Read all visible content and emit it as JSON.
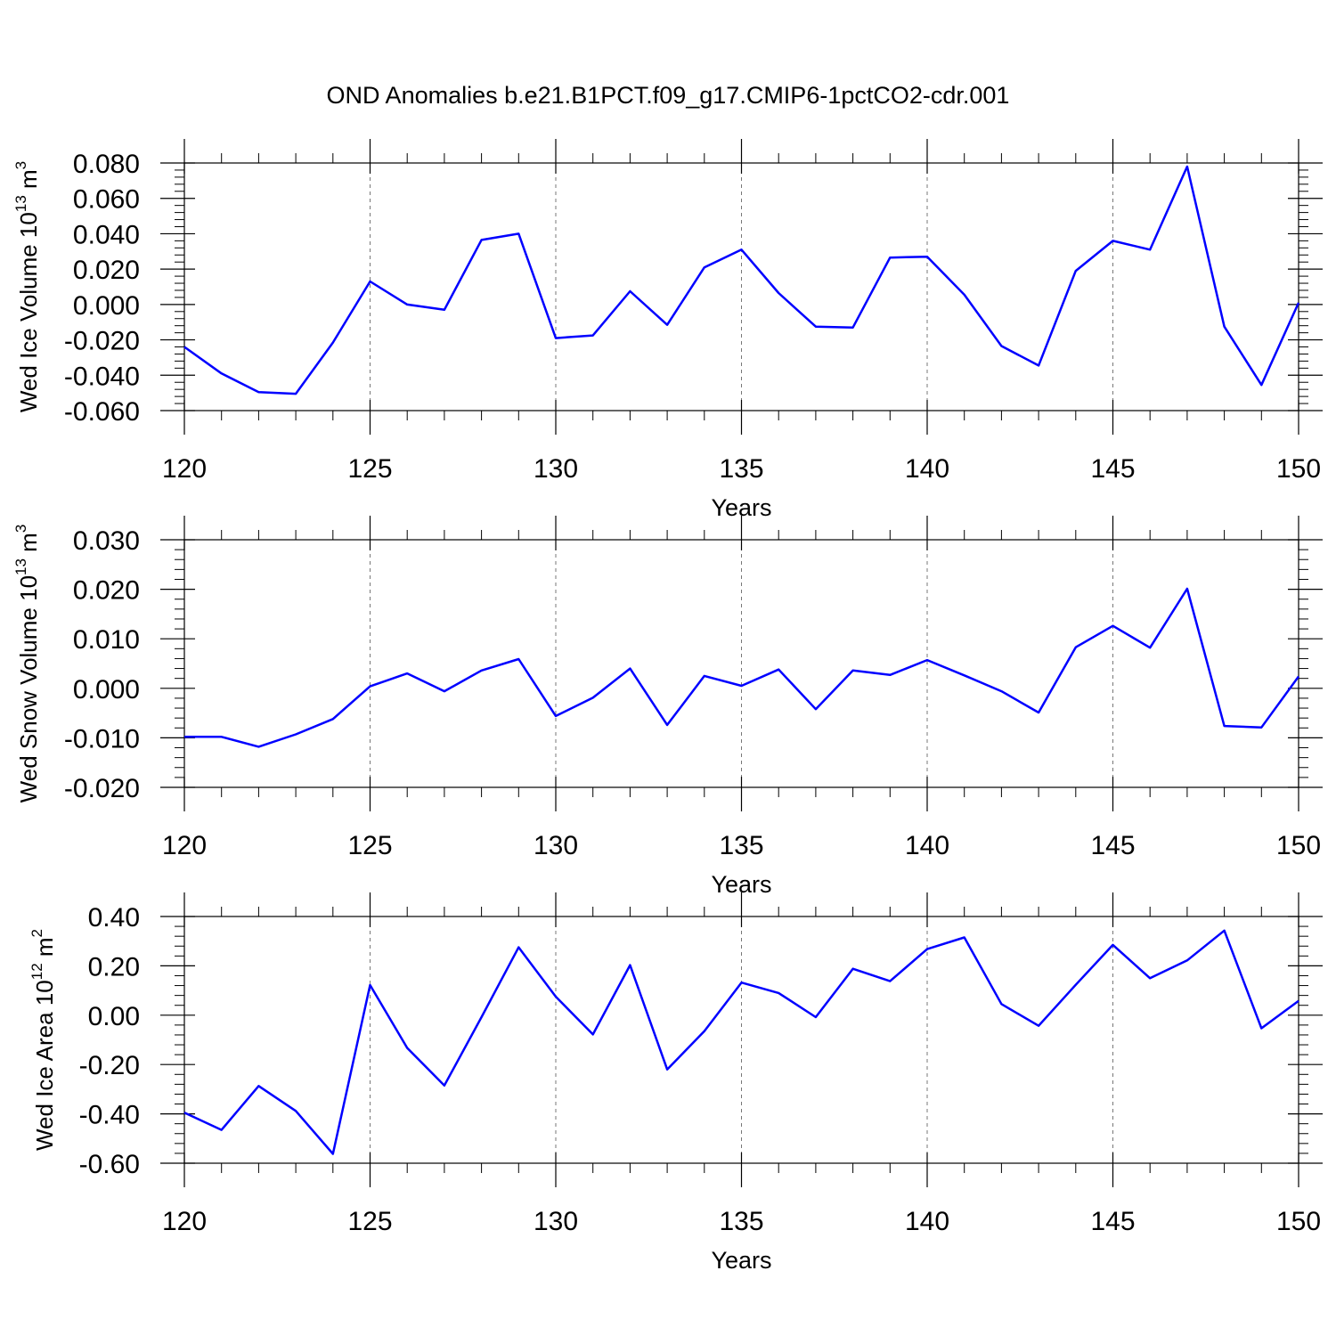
{
  "title": "OND Anomalies b.e21.B1PCT.f09_g17.CMIP6-1pctCO2-cdr.001",
  "chart_data": [
    {
      "type": "line",
      "title": "",
      "xlabel": "Years",
      "ylabel": "Wed Ice Volume 10",
      "ylabel_exp": "13",
      "ylabel_unit": "m",
      "ylabel_unit_exp": "3",
      "xlim": [
        120,
        150
      ],
      "ylim": [
        -0.06,
        0.08
      ],
      "xticks": [
        120,
        125,
        130,
        135,
        140,
        145,
        150
      ],
      "yticks": [
        "-0.060",
        "-0.040",
        "-0.020",
        "0.000",
        "0.020",
        "0.040",
        "0.060",
        "0.080"
      ],
      "ytick_values": [
        -0.06,
        -0.04,
        -0.02,
        0.0,
        0.02,
        0.04,
        0.06,
        0.08
      ],
      "line_color": "#0000ff",
      "grid": "vertical dashed at major x ticks",
      "x": [
        120,
        121,
        122,
        123,
        124,
        125,
        126,
        127,
        128,
        129,
        130,
        131,
        132,
        133,
        134,
        135,
        136,
        137,
        138,
        139,
        140,
        141,
        142,
        143,
        144,
        145,
        146,
        147,
        148,
        149,
        150
      ],
      "values": [
        -0.024,
        -0.039,
        -0.0495,
        -0.0505,
        -0.0215,
        0.013,
        0.0,
        -0.003,
        0.0365,
        0.04,
        -0.019,
        -0.0175,
        0.0075,
        -0.0115,
        0.021,
        0.031,
        0.0065,
        -0.0125,
        -0.013,
        0.0265,
        0.027,
        0.0055,
        -0.0235,
        -0.0345,
        0.019,
        0.036,
        0.031,
        0.078,
        -0.0125,
        -0.0455,
        0.001
      ]
    },
    {
      "type": "line",
      "title": "",
      "xlabel": "Years",
      "ylabel": "Wed Snow Volume 10",
      "ylabel_exp": "13",
      "ylabel_unit": "m",
      "ylabel_unit_exp": "3",
      "xlim": [
        120,
        150
      ],
      "ylim": [
        -0.02,
        0.03
      ],
      "xticks": [
        120,
        125,
        130,
        135,
        140,
        145,
        150
      ],
      "yticks": [
        "-0.020",
        "-0.010",
        "0.000",
        "0.010",
        "0.020",
        "0.030"
      ],
      "ytick_values": [
        -0.02,
        -0.01,
        0.0,
        0.01,
        0.02,
        0.03
      ],
      "line_color": "#0000ff",
      "grid": "vertical dashed at major x ticks",
      "x": [
        120,
        121,
        122,
        123,
        124,
        125,
        126,
        127,
        128,
        129,
        130,
        131,
        132,
        133,
        134,
        135,
        136,
        137,
        138,
        139,
        140,
        141,
        142,
        143,
        144,
        145,
        146,
        147,
        148,
        149,
        150
      ],
      "values": [
        -0.0098,
        -0.0098,
        -0.0118,
        -0.0093,
        -0.0062,
        0.0004,
        0.003,
        -0.0006,
        0.0036,
        0.0059,
        -0.0056,
        -0.0019,
        0.004,
        -0.0074,
        0.0025,
        0.0005,
        0.0038,
        -0.0042,
        0.0036,
        0.0027,
        0.0057,
        0.0026,
        -0.0006,
        -0.0049,
        0.0083,
        0.0126,
        0.0082,
        0.0201,
        -0.0076,
        -0.0079,
        0.0024
      ]
    },
    {
      "type": "line",
      "title": "",
      "xlabel": "Years",
      "ylabel": "Wed Ice Area 10",
      "ylabel_exp": "12",
      "ylabel_unit": "m",
      "ylabel_unit_exp": "2",
      "xlim": [
        120,
        150
      ],
      "ylim": [
        -0.6,
        0.4
      ],
      "xticks": [
        120,
        125,
        130,
        135,
        140,
        145,
        150
      ],
      "yticks": [
        "-0.60",
        "-0.40",
        "-0.20",
        "0.00",
        "0.20",
        "0.40"
      ],
      "ytick_values": [
        -0.6,
        -0.4,
        -0.2,
        0.0,
        0.2,
        0.4
      ],
      "line_color": "#0000ff",
      "grid": "vertical dashed at major x ticks",
      "x": [
        120,
        121,
        122,
        123,
        124,
        125,
        126,
        127,
        128,
        129,
        130,
        131,
        132,
        133,
        134,
        135,
        136,
        137,
        138,
        139,
        140,
        141,
        142,
        143,
        144,
        145,
        146,
        147,
        148,
        149,
        150
      ],
      "values": [
        -0.395,
        -0.465,
        -0.287,
        -0.388,
        -0.562,
        0.122,
        -0.133,
        -0.285,
        -0.008,
        0.275,
        0.075,
        -0.078,
        0.203,
        -0.22,
        -0.065,
        0.132,
        0.09,
        -0.008,
        0.188,
        0.138,
        0.268,
        0.315,
        0.045,
        -0.043,
        0.123,
        0.285,
        0.15,
        0.222,
        0.343,
        -0.053,
        0.058
      ]
    }
  ]
}
